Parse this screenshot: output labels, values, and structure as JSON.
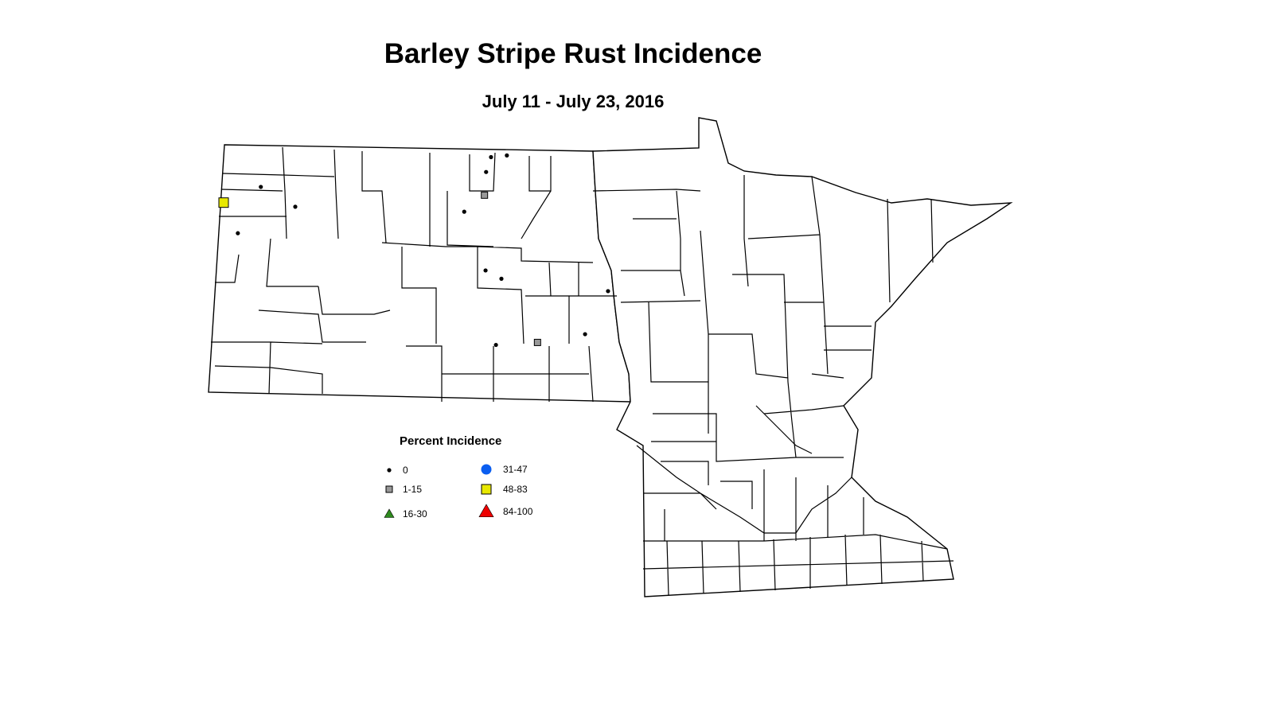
{
  "title": "Barley Stripe Rust Incidence",
  "subtitle": "July 11 - July 23, 2016",
  "legend": {
    "title": "Percent Incidence",
    "classes": [
      {
        "label": "0",
        "symbol": "dot",
        "color": "#000000"
      },
      {
        "label": "1-15",
        "symbol": "square",
        "color": "#999999"
      },
      {
        "label": "16-30",
        "symbol": "triangle",
        "color": "#2e8b1e"
      },
      {
        "label": "31-47",
        "symbol": "circle",
        "color": "#0a5ef0"
      },
      {
        "label": "48-83",
        "symbol": "square",
        "color": "#e8e800"
      },
      {
        "label": "84-100",
        "symbol": "triangle",
        "color": "#ee0000"
      }
    ]
  },
  "observations": [
    {
      "lon": -103.89,
      "lat": 48.33,
      "class": "48-83"
    },
    {
      "lon": -103.21,
      "lat": 48.52,
      "class": "0"
    },
    {
      "lon": -102.58,
      "lat": 48.28,
      "class": "0"
    },
    {
      "lon": -103.63,
      "lat": 47.96,
      "class": "0"
    },
    {
      "lon": -99.0,
      "lat": 48.88,
      "class": "0"
    },
    {
      "lon": -98.71,
      "lat": 48.9,
      "class": "0"
    },
    {
      "lon": -99.09,
      "lat": 48.7,
      "class": "0"
    },
    {
      "lon": -99.12,
      "lat": 48.42,
      "class": "1-15"
    },
    {
      "lon": -99.49,
      "lat": 48.22,
      "class": "0"
    },
    {
      "lon": -99.1,
      "lat": 47.51,
      "class": "0"
    },
    {
      "lon": -98.81,
      "lat": 47.41,
      "class": "0"
    },
    {
      "lon": -96.86,
      "lat": 47.26,
      "class": "0"
    },
    {
      "lon": -97.28,
      "lat": 46.74,
      "class": "0"
    },
    {
      "lon": -98.91,
      "lat": 46.61,
      "class": "0"
    },
    {
      "lon": -98.15,
      "lat": 46.64,
      "class": "1-15"
    }
  ]
}
